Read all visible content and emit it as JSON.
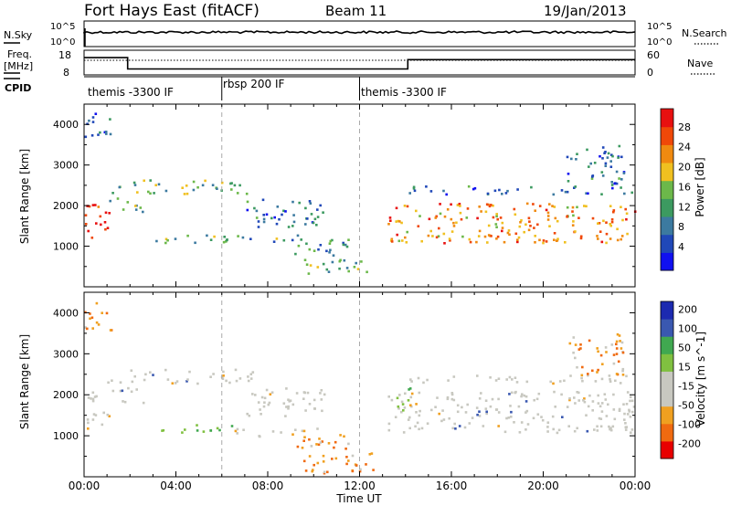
{
  "header": {
    "radar": "Fort Hays East (fitACF)",
    "beam": "Beam 11",
    "date": "19/Jan/2013"
  },
  "noise_panel": {
    "left_label": "N.Sky",
    "right_label": "N.Search",
    "left_ticks": [
      "10^5",
      "10^0"
    ],
    "right_ticks": [
      "10^5",
      "10^0"
    ]
  },
  "freq_panel": {
    "left_label_line1": "Freq.",
    "left_label_line2": "[MHz]",
    "right_label": "Nave",
    "left_ticks": [
      "18",
      "8"
    ],
    "right_ticks": [
      "60",
      "0"
    ],
    "freq_segments": [
      {
        "from_hour": 0.0,
        "to_hour": 1.9,
        "freq_mhz": 15.0
      },
      {
        "from_hour": 1.9,
        "to_hour": 14.1,
        "freq_mhz": 10.4
      },
      {
        "from_hour": 14.1,
        "to_hour": 24.0,
        "freq_mhz": 14.2
      }
    ]
  },
  "cpid_panel": {
    "label": "CPID",
    "segments": [
      {
        "from_hour": 0.0,
        "to_hour": 6.0,
        "label": "themis -3300 IF"
      },
      {
        "from_hour": 6.0,
        "to_hour": 12.0,
        "label": "rbsp 200 IF"
      },
      {
        "from_hour": 12.0,
        "to_hour": 24.0,
        "label": "themis -3300 IF"
      }
    ]
  },
  "colors": {
    "power_scale": [
      "#1010f0",
      "#2048b8",
      "#3c7aa0",
      "#3c9a60",
      "#6cb84a",
      "#f0c020",
      "#f08a10",
      "#f04808",
      "#e81010"
    ],
    "velocity_scale": [
      "#e80000",
      "#f06a10",
      "#f0a020",
      "#c8c8c0",
      "#c8c8c0",
      "#80c040",
      "#40a850",
      "#3a58b0",
      "#1c2ab0"
    ],
    "axis": "#000000"
  },
  "chart_data": [
    {
      "type": "heatmap",
      "title": "",
      "xlabel": "",
      "ylabel": "Slant Range [km]",
      "colorbar_label": "Power [dB]",
      "colorbar_ticks": [
        "28",
        "24",
        "20",
        "16",
        "12",
        "8",
        "4"
      ],
      "ylim": [
        0,
        4500
      ],
      "yticks": [
        "4000",
        "3000",
        "2000",
        "1000"
      ],
      "xlim_hours": [
        0,
        24
      ],
      "echo_regions": [
        {
          "t0": 0.0,
          "t1": 1.1,
          "r0": 1200,
          "r1": 2100,
          "level": 24
        },
        {
          "t0": 1.0,
          "t1": 1.6,
          "r0": 2100,
          "r1": 2600,
          "level": 10
        },
        {
          "t0": 1.6,
          "t1": 2.6,
          "r0": 1800,
          "r1": 2200,
          "level": 12
        },
        {
          "t0": 2.0,
          "t1": 7.5,
          "r0": 2300,
          "r1": 2650,
          "level": 12
        },
        {
          "t0": 3.0,
          "t1": 9.5,
          "r0": 1100,
          "r1": 1300,
          "level": 10
        },
        {
          "t0": 7.0,
          "t1": 10.5,
          "r0": 1500,
          "r1": 2200,
          "level": 6
        },
        {
          "t0": 9.0,
          "t1": 11.5,
          "r0": 700,
          "r1": 1200,
          "level": 8
        },
        {
          "t0": 9.5,
          "t1": 12.5,
          "r0": 300,
          "r1": 700,
          "level": 10
        },
        {
          "t0": 13.2,
          "t1": 24.0,
          "r0": 1100,
          "r1": 2100,
          "level": 20
        },
        {
          "t0": 14.0,
          "t1": 24.0,
          "r0": 2300,
          "r1": 2500,
          "level": 6
        },
        {
          "t0": 21.0,
          "t1": 23.5,
          "r0": 2500,
          "r1": 3500,
          "level": 6
        },
        {
          "t0": 0.0,
          "t1": 1.2,
          "r0": 3600,
          "r1": 4300,
          "level": 6
        }
      ]
    },
    {
      "type": "heatmap",
      "title": "",
      "xlabel": "Time UT",
      "ylabel": "Slant Range [km]",
      "colorbar_label": "Velocity [m s^-1]",
      "colorbar_ticks": [
        "200",
        "100",
        "50",
        "15",
        "-15",
        "-50",
        "-100",
        "-200"
      ],
      "ylim": [
        0,
        4500
      ],
      "yticks": [
        "4000",
        "3000",
        "2000",
        "1000"
      ],
      "xlim_hours": [
        0,
        24
      ],
      "xticks": [
        "00:00",
        "04:00",
        "08:00",
        "12:00",
        "16:00",
        "20:00",
        "00:00"
      ],
      "echo_regions": [
        {
          "t0": 0.0,
          "t1": 1.1,
          "r0": 1200,
          "r1": 2100,
          "vel": 0
        },
        {
          "t0": 1.0,
          "t1": 1.6,
          "r0": 2100,
          "r1": 2600,
          "vel": 0
        },
        {
          "t0": 1.6,
          "t1": 2.6,
          "r0": 1800,
          "r1": 2200,
          "vel": 0
        },
        {
          "t0": 2.0,
          "t1": 7.5,
          "r0": 2300,
          "r1": 2650,
          "vel": 0
        },
        {
          "t0": 3.0,
          "t1": 6.5,
          "r0": 1100,
          "r1": 1300,
          "vel": 40
        },
        {
          "t0": 6.5,
          "t1": 9.5,
          "r0": 1000,
          "r1": 1200,
          "vel": 0
        },
        {
          "t0": 7.0,
          "t1": 10.5,
          "r0": 1500,
          "r1": 2200,
          "vel": 0
        },
        {
          "t0": 9.0,
          "t1": 11.5,
          "r0": 700,
          "r1": 1200,
          "vel": -30
        },
        {
          "t0": 9.5,
          "t1": 13.0,
          "r0": 100,
          "r1": 600,
          "vel": -60
        },
        {
          "t0": 13.2,
          "t1": 24.0,
          "r0": 1100,
          "r1": 2100,
          "vel": 0
        },
        {
          "t0": 13.5,
          "t1": 14.2,
          "r0": 1600,
          "r1": 2200,
          "vel": 40
        },
        {
          "t0": 14.0,
          "t1": 24.0,
          "r0": 2300,
          "r1": 2500,
          "vel": 0
        },
        {
          "t0": 21.0,
          "t1": 23.5,
          "r0": 2500,
          "r1": 3500,
          "vel": -40
        },
        {
          "t0": 0.0,
          "t1": 1.2,
          "r0": 3600,
          "r1": 4300,
          "vel": -30
        }
      ]
    }
  ]
}
